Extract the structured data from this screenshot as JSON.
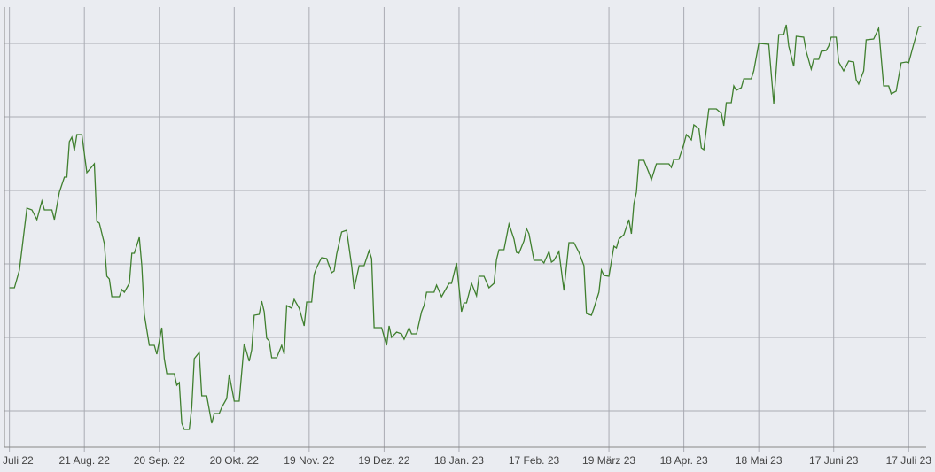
{
  "chart_data": {
    "type": "line",
    "x": [
      0,
      2,
      4,
      7,
      9,
      11,
      13,
      14,
      17,
      18,
      20,
      22,
      23,
      24,
      25,
      26,
      27,
      29,
      31,
      34,
      35,
      36,
      38,
      39,
      40,
      41,
      44,
      45,
      46,
      48,
      49,
      50,
      52,
      53,
      54,
      56,
      58,
      59,
      61,
      62,
      63,
      66,
      67,
      68,
      69,
      70,
      72,
      73,
      74,
      76,
      77,
      79,
      81,
      82,
      84,
      85,
      87,
      88,
      90,
      92,
      94,
      96,
      97,
      98,
      100,
      101,
      102,
      103,
      104,
      105,
      107,
      109,
      110,
      111,
      113,
      114,
      116,
      118,
      119,
      121,
      122,
      123,
      125,
      127,
      129,
      130,
      131,
      133,
      135,
      137,
      138,
      140,
      142,
      144,
      145,
      146,
      149,
      151,
      152,
      153,
      155,
      157,
      158,
      160,
      161,
      163,
      165,
      166,
      167,
      170,
      171,
      173,
      174,
      176,
      177,
      179,
      181,
      182,
      183,
      185,
      187,
      188,
      190,
      192,
      194,
      195,
      196,
      198,
      200,
      202,
      203,
      204,
      206,
      207,
      208,
      210,
      213,
      214,
      216,
      217,
      218,
      220,
      222,
      224,
      226,
      228,
      230,
      231,
      233,
      234,
      236,
      237,
      238,
      240,
      242,
      243,
      244,
      246,
      248,
      249,
      250,
      251,
      252,
      254,
      256,
      257,
      259,
      264,
      265,
      266,
      268,
      270,
      271,
      273,
      274,
      276,
      277,
      278,
      280,
      283,
      285,
      286,
      287,
      289,
      290,
      291,
      293,
      294,
      297,
      298,
      300,
      304,
      306,
      308,
      310,
      311,
      312,
      314,
      315,
      318,
      319,
      321,
      322,
      324,
      325,
      327,
      328,
      329,
      331,
      332,
      334,
      336,
      338,
      339,
      340,
      342,
      343,
      346,
      348,
      350,
      352,
      353,
      355,
      357,
      359,
      360,
      362,
      364,
      365
    ],
    "series": [
      {
        "color": "#3f7f2e",
        "values": [
          180,
          180,
          200,
          270,
          268,
          257,
          278,
          268,
          268,
          257,
          288,
          305,
          305,
          345,
          350,
          335,
          353,
          353,
          310,
          320,
          255,
          253,
          230,
          193,
          190,
          170,
          170,
          178,
          175,
          185,
          219,
          219,
          237,
          205,
          150,
          115,
          115,
          105,
          135,
          100,
          83,
          83,
          70,
          73,
          27,
          20,
          20,
          45,
          100,
          107,
          58,
          58,
          27,
          38,
          38,
          45,
          55,
          82,
          52,
          52,
          117,
          97,
          110,
          149,
          150,
          165,
          153,
          123,
          120,
          101,
          101,
          115,
          105,
          160,
          157,
          167,
          157,
          137,
          164,
          164,
          195,
          203,
          214,
          213,
          197,
          199,
          218,
          243,
          245,
          205,
          179,
          205,
          205,
          222,
          213,
          135,
          135,
          115,
          137,
          124,
          130,
          128,
          122,
          135,
          128,
          128,
          153,
          160,
          175,
          175,
          183,
          170,
          175,
          185,
          185,
          208,
          153,
          163,
          163,
          185,
          171,
          193,
          193,
          180,
          185,
          212,
          223,
          223,
          252,
          235,
          220,
          219,
          233,
          247,
          241,
          211,
          211,
          208,
          221,
          209,
          211,
          221,
          177,
          231,
          231,
          220,
          205,
          151,
          149,
          157,
          175,
          200,
          194,
          193,
          227,
          225,
          235,
          240,
          257,
          241,
          275,
          288,
          324,
          324,
          310,
          302,
          320,
          320,
          316,
          325,
          325,
          342,
          353,
          347,
          364,
          360,
          338,
          336,
          382,
          382,
          377,
          363,
          389,
          389,
          408,
          403,
          406,
          416,
          416,
          425,
          456,
          455,
          388,
          466,
          466,
          477,
          453,
          430,
          464,
          463,
          447,
          427,
          438,
          438,
          447,
          448,
          453,
          463,
          463,
          435,
          425,
          436,
          435,
          415,
          410,
          425,
          460,
          461,
          473,
          408,
          408,
          399,
          402,
          434,
          435,
          434,
          455,
          475,
          475
        ]
      }
    ],
    "xlim": [
      -2,
      367
    ],
    "ylim": [
      0,
      497
    ],
    "xticks": [
      {
        "value": 0,
        "label": "Juli 22"
      },
      {
        "value": 30,
        "label": "21 Aug. 22"
      },
      {
        "value": 60,
        "label": "20 Sep. 22"
      },
      {
        "value": 90,
        "label": "20 Okt. 22"
      },
      {
        "value": 120,
        "label": "19 Nov. 22"
      },
      {
        "value": 150,
        "label": "19 Dez. 22"
      },
      {
        "value": 180,
        "label": "18 Jan. 23"
      },
      {
        "value": 210,
        "label": "17 Feb. 23"
      },
      {
        "value": 240,
        "label": "19 März 23"
      },
      {
        "value": 270,
        "label": "18 Apr. 23"
      },
      {
        "value": 300,
        "label": "18 Mai 23"
      },
      {
        "value": 330,
        "label": "17 Juni 23"
      },
      {
        "value": 360,
        "label": "17 Juli 23"
      }
    ],
    "ygrid": [
      41,
      124,
      207,
      290,
      373,
      456
    ]
  }
}
